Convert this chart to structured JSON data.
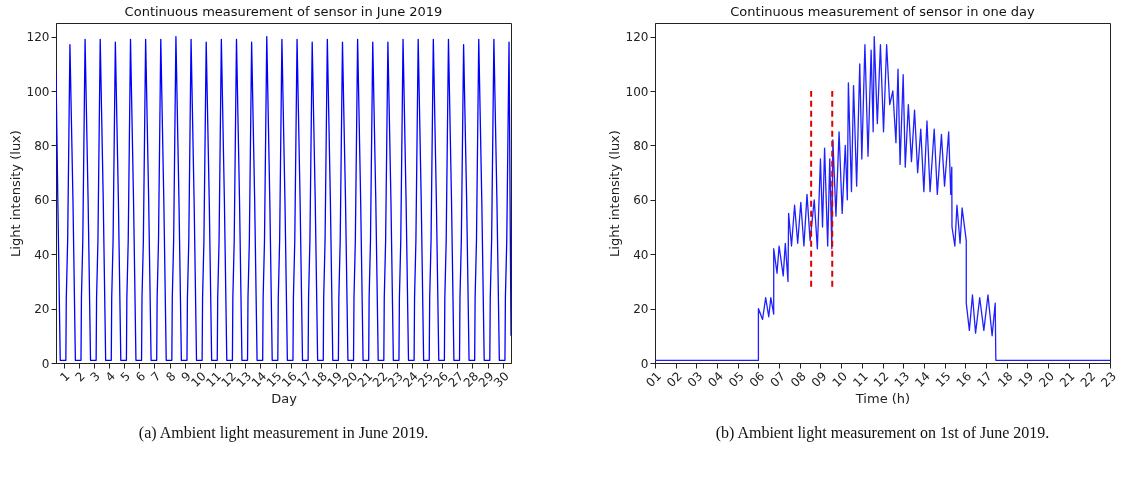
{
  "chart_data": [
    {
      "type": "line",
      "title": "Continuous measurement of sensor in June 2019",
      "xlabel": "Day",
      "ylabel": "Light intensity (lux)",
      "xlim": [
        0.5,
        30.55
      ],
      "ylim": [
        0,
        125
      ],
      "xticks": [
        1,
        2,
        3,
        4,
        5,
        6,
        7,
        8,
        9,
        10,
        11,
        12,
        13,
        14,
        15,
        16,
        17,
        18,
        19,
        20,
        21,
        22,
        23,
        24,
        25,
        26,
        27,
        28,
        29,
        30
      ],
      "yticks": [
        0,
        20,
        40,
        60,
        80,
        100,
        120
      ],
      "grid": false,
      "marker": "none",
      "annotations": [
        "(a) Ambient light measurement in June 2019."
      ],
      "series": [
        {
          "color": "#0000ff",
          "line_style": "solid",
          "x": [
            0.5,
            0.62,
            0.78,
            1.15,
            1.18,
            1.27,
            1.42,
            1.62,
            1.78,
            2.15,
            2.18,
            2.27,
            2.42,
            2.62,
            2.78,
            3.15,
            3.18,
            3.27,
            3.42,
            3.62,
            3.78,
            4.15,
            4.18,
            4.27,
            4.42,
            4.62,
            4.78,
            5.15,
            5.18,
            5.27,
            5.42,
            5.62,
            5.78,
            6.15,
            6.18,
            6.27,
            6.42,
            6.62,
            6.78,
            7.15,
            7.18,
            7.27,
            7.42,
            7.62,
            7.78,
            8.15,
            8.18,
            8.27,
            8.42,
            8.62,
            8.78,
            9.15,
            9.18,
            9.27,
            9.42,
            9.62,
            9.78,
            10.15,
            10.18,
            10.27,
            10.42,
            10.62,
            10.78,
            11.15,
            11.18,
            11.27,
            11.42,
            11.62,
            11.78,
            12.15,
            12.18,
            12.27,
            12.42,
            12.62,
            12.78,
            13.15,
            13.18,
            13.27,
            13.42,
            13.62,
            13.78,
            14.15,
            14.18,
            14.27,
            14.42,
            14.62,
            14.78,
            15.15,
            15.18,
            15.27,
            15.42,
            15.62,
            15.78,
            16.15,
            16.18,
            16.27,
            16.42,
            16.62,
            16.78,
            17.15,
            17.18,
            17.27,
            17.42,
            17.62,
            17.78,
            18.15,
            18.18,
            18.27,
            18.42,
            18.62,
            18.78,
            19.15,
            19.18,
            19.27,
            19.42,
            19.62,
            19.78,
            20.15,
            20.18,
            20.27,
            20.42,
            20.62,
            20.78,
            21.15,
            21.18,
            21.27,
            21.42,
            21.62,
            21.78,
            22.15,
            22.18,
            22.27,
            22.42,
            22.62,
            22.78,
            23.15,
            23.18,
            23.27,
            23.42,
            23.62,
            23.78,
            24.15,
            24.18,
            24.27,
            24.42,
            24.62,
            24.78,
            25.15,
            25.18,
            25.27,
            25.42,
            25.62,
            25.78,
            26.15,
            26.18,
            26.27,
            26.42,
            26.62,
            26.78,
            27.15,
            27.18,
            27.27,
            27.42,
            27.62,
            27.78,
            28.15,
            28.18,
            28.27,
            28.42,
            28.62,
            28.78,
            29.15,
            29.18,
            29.27,
            29.42,
            29.62,
            29.78,
            30.15,
            30.18,
            30.27,
            30.42,
            30.55
          ],
          "values": [
            107,
            60,
            1,
            1,
            24,
            45,
            117,
            60,
            1,
            1,
            24,
            45,
            119,
            60,
            1,
            1,
            24,
            45,
            119,
            60,
            1,
            1,
            24,
            45,
            118,
            60,
            1,
            1,
            24,
            45,
            119,
            60,
            1,
            1,
            24,
            45,
            119,
            60,
            1,
            1,
            24,
            45,
            119,
            60,
            1,
            1,
            24,
            45,
            120,
            60,
            1,
            1,
            24,
            45,
            119,
            60,
            1,
            1,
            24,
            45,
            118,
            60,
            1,
            1,
            24,
            45,
            119,
            60,
            1,
            1,
            24,
            45,
            119,
            60,
            1,
            1,
            24,
            45,
            118,
            60,
            1,
            1,
            24,
            45,
            120,
            60,
            1,
            1,
            24,
            45,
            119,
            60,
            1,
            1,
            24,
            45,
            119,
            60,
            1,
            1,
            24,
            45,
            118,
            60,
            1,
            1,
            24,
            45,
            119,
            60,
            1,
            1,
            24,
            45,
            118,
            60,
            1,
            1,
            24,
            45,
            119,
            60,
            1,
            1,
            24,
            45,
            118,
            60,
            1,
            1,
            24,
            45,
            118,
            60,
            1,
            1,
            24,
            45,
            119,
            60,
            1,
            1,
            24,
            45,
            119,
            60,
            1,
            1,
            24,
            45,
            119,
            60,
            1,
            1,
            24,
            45,
            119,
            60,
            1,
            1,
            24,
            45,
            117,
            60,
            1,
            1,
            24,
            45,
            119,
            60,
            1,
            1,
            24,
            45,
            119,
            60,
            1,
            1,
            24,
            45,
            118,
            10
          ]
        }
      ]
    },
    {
      "type": "line",
      "title": "Continuous measurement of sensor in one day",
      "xlabel": "Time (h)",
      "ylabel": "Light intensity (lux)",
      "xlim": [
        1,
        23
      ],
      "ylim": [
        0,
        125
      ],
      "xticks": [
        {
          "value": 1,
          "label": "01"
        },
        {
          "value": 2,
          "label": "02"
        },
        {
          "value": 3,
          "label": "03"
        },
        {
          "value": 4,
          "label": "04"
        },
        {
          "value": 5,
          "label": "05"
        },
        {
          "value": 6,
          "label": "06"
        },
        {
          "value": 7,
          "label": "07"
        },
        {
          "value": 8,
          "label": "08"
        },
        {
          "value": 9,
          "label": "09"
        },
        {
          "value": 10,
          "label": "10"
        },
        {
          "value": 11,
          "label": "11"
        },
        {
          "value": 12,
          "label": "12"
        },
        {
          "value": 13,
          "label": "13"
        },
        {
          "value": 14,
          "label": "14"
        },
        {
          "value": 15,
          "label": "15"
        },
        {
          "value": 16,
          "label": "16"
        },
        {
          "value": 17,
          "label": "17"
        },
        {
          "value": 18,
          "label": "18"
        },
        {
          "value": 19,
          "label": "19"
        },
        {
          "value": 20,
          "label": "20"
        },
        {
          "value": 21,
          "label": "21"
        },
        {
          "value": 22,
          "label": "22"
        },
        {
          "value": 23,
          "label": "23"
        }
      ],
      "yticks": [
        0,
        20,
        40,
        60,
        80,
        100,
        120
      ],
      "grid": false,
      "marker": "none",
      "annotations": [
        "(b) Ambient light measurement on 1st of June 2019."
      ],
      "series": [
        {
          "color": "#2020ff",
          "line_style": "solid",
          "x": [
            1.0,
            6.0,
            6.0,
            6.2,
            6.35,
            6.5,
            6.6,
            6.74,
            6.74,
            6.9,
            7.0,
            7.2,
            7.3,
            7.43,
            7.46,
            7.6,
            7.75,
            7.9,
            8.05,
            8.2,
            8.35,
            8.5,
            8.7,
            8.85,
            9.0,
            9.1,
            9.2,
            9.35,
            9.45,
            9.55,
            9.6,
            9.75,
            9.9,
            10.05,
            10.2,
            10.3,
            10.35,
            10.5,
            10.6,
            10.75,
            10.9,
            11.0,
            11.15,
            11.3,
            11.45,
            11.55,
            11.6,
            11.75,
            11.9,
            12.05,
            12.2,
            12.35,
            12.5,
            12.65,
            12.75,
            12.85,
            13.0,
            13.1,
            13.25,
            13.4,
            13.55,
            13.7,
            13.85,
            14.0,
            14.15,
            14.3,
            14.5,
            14.65,
            14.85,
            15.0,
            15.2,
            15.3,
            15.35,
            15.36,
            15.5,
            15.6,
            15.75,
            15.85,
            16.05,
            16.05,
            16.2,
            16.35,
            16.5,
            16.7,
            16.9,
            17.1,
            17.3,
            17.45,
            17.48,
            23.0
          ],
          "values": [
            1,
            1,
            20,
            16,
            24,
            17,
            24,
            18,
            42,
            33,
            43,
            32,
            44,
            30,
            55,
            43,
            58,
            44,
            59,
            43,
            62,
            45,
            60,
            42,
            75,
            50,
            79,
            43,
            75,
            42,
            82,
            54,
            85,
            55,
            80,
            60,
            103,
            63,
            102,
            65,
            110,
            75,
            117,
            76,
            115,
            85,
            120,
            88,
            117,
            85,
            117,
            95,
            100,
            81,
            108,
            73,
            106,
            72,
            95,
            74,
            93,
            70,
            86,
            63,
            89,
            63,
            86,
            62,
            84,
            65,
            85,
            62,
            72,
            50,
            43,
            58,
            44,
            57,
            45,
            22,
            12,
            25,
            11,
            24,
            12,
            25,
            10,
            22,
            1,
            1
          ]
        },
        {
          "type": "line",
          "color": "#dd0000",
          "line_style": "dashed",
          "x": [
            8.55,
            8.55
          ],
          "values": [
            28,
            100
          ]
        },
        {
          "type": "line",
          "color": "#dd0000",
          "line_style": "dashed",
          "x": [
            9.57,
            9.57
          ],
          "values": [
            28,
            100
          ]
        }
      ]
    }
  ]
}
